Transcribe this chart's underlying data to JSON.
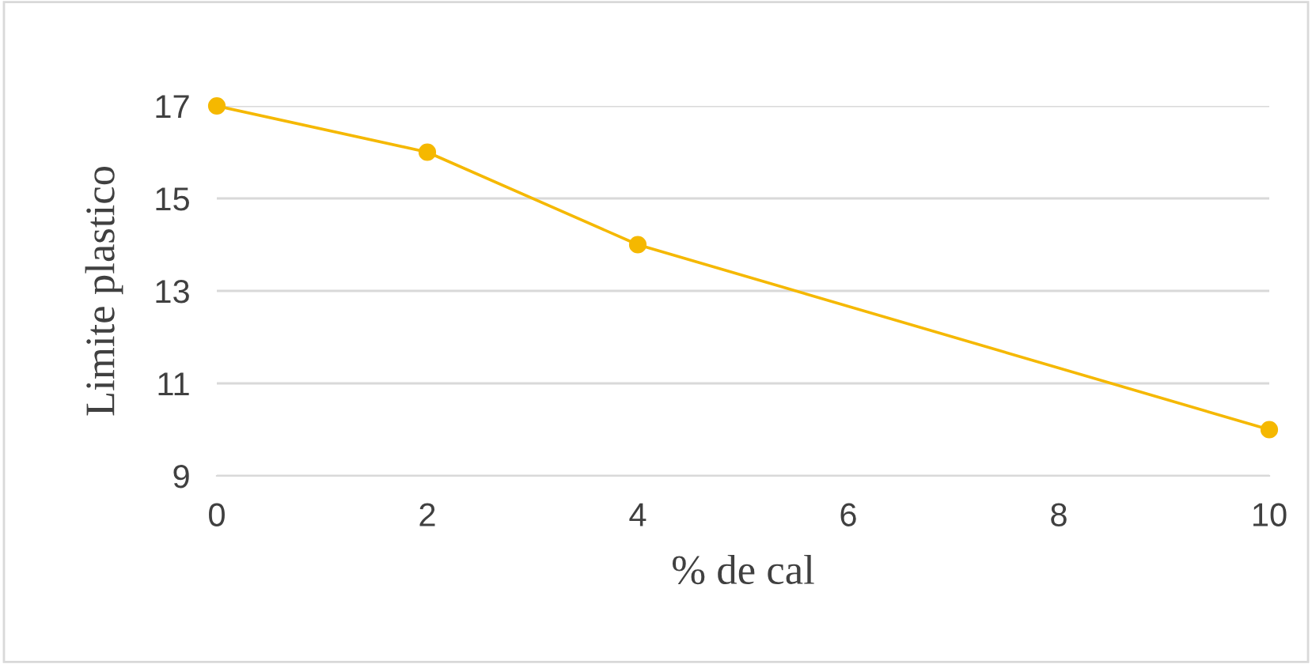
{
  "chart_data": {
    "type": "line",
    "xlabel": "% de cal",
    "ylabel": "Limite plastico",
    "x": [
      0,
      2,
      4,
      10
    ],
    "series": [
      {
        "color": "#f5b800",
        "values": [
          17,
          16,
          14,
          10
        ]
      }
    ],
    "xlim": [
      0,
      10
    ],
    "xticks": [
      0,
      2,
      4,
      6,
      8,
      10
    ],
    "ylim": [
      9,
      17
    ],
    "yticks": [
      9,
      11,
      13,
      15,
      17
    ],
    "grid": "y",
    "marker": "circle",
    "line_style": "solid"
  }
}
